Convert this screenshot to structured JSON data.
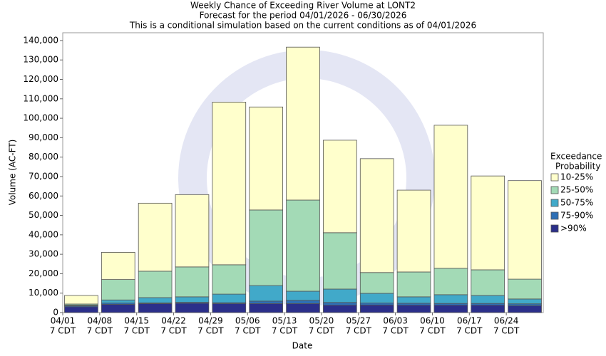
{
  "chart_data": {
    "type": "stacked_bar",
    "title": "Weekly Chance of Exceeding River Volume at LONT2",
    "subtitle": [
      "Forecast for the period 04/01/2026 - 06/30/2026",
      "This is a conditional simulation based on the current conditions as of 04/01/2026"
    ],
    "x_label": "Date",
    "y_label": "Volume (AC-FT)",
    "categories": [
      "04/01",
      "04/08",
      "04/15",
      "04/22",
      "04/29",
      "05/06",
      "05/13",
      "05/20",
      "05/27",
      "06/03",
      "06/10",
      "06/17",
      "06/24"
    ],
    "category_sublabel": "7 CDT",
    "legend_title": [
      "Exceedance",
      "Probability"
    ],
    "series": [
      {
        "name": ">90%",
        "color": "#2b2f8a",
        "values": [
          3000,
          4200,
          4600,
          4800,
          4600,
          4600,
          4600,
          3800,
          3900,
          3800,
          3800,
          3800,
          3500
        ]
      },
      {
        "name": "75-90%",
        "color": "#2e6fb5",
        "values": [
          500,
          700,
          400,
          500,
          500,
          1300,
          1700,
          1400,
          1000,
          1000,
          900,
          900,
          1000
        ]
      },
      {
        "name": "50-75%",
        "color": "#41a9c9",
        "values": [
          300,
          1600,
          2700,
          2800,
          4400,
          8000,
          4700,
          6900,
          5000,
          3300,
          4500,
          4100,
          2500
        ]
      },
      {
        "name": "25-50%",
        "color": "#a3dab6",
        "values": [
          600,
          10500,
          13600,
          15400,
          15100,
          38900,
          46900,
          29000,
          10700,
          12800,
          13600,
          13200,
          10200
        ]
      },
      {
        "name": "10-25%",
        "color": "#ffffcc",
        "values": [
          4400,
          14000,
          35000,
          37200,
          83700,
          53000,
          78700,
          47600,
          58600,
          42100,
          73600,
          48300,
          50700
        ]
      }
    ],
    "ylim": [
      0,
      144000
    ],
    "yticks": [
      0,
      {
        "value": 10000,
        "label": "10,000"
      },
      {
        "value": 20000,
        "label": "20,000"
      },
      {
        "value": 30000,
        "label": "30,000"
      },
      {
        "value": 40000,
        "label": "40,000"
      },
      {
        "value": 50000,
        "label": "50,000"
      },
      {
        "value": 60000,
        "label": "60,000"
      },
      {
        "value": 70000,
        "label": "70,000"
      },
      {
        "value": 80000,
        "label": "80,000"
      },
      {
        "value": 90000,
        "label": "90,000"
      },
      {
        "value": 100000,
        "label": "100,000"
      },
      {
        "value": 110000,
        "label": "110,000"
      },
      {
        "value": 120000,
        "label": "120,000"
      },
      {
        "value": 130000,
        "label": "130,000"
      },
      {
        "value": 140000,
        "label": "140,000"
      }
    ],
    "legend_position": "right"
  }
}
